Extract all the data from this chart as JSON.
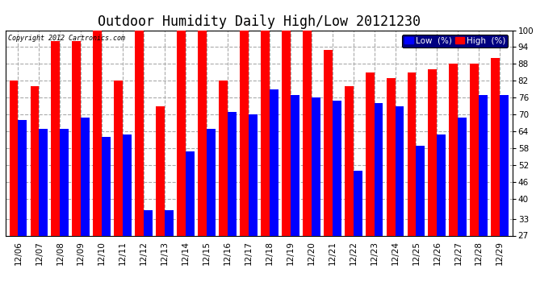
{
  "title": "Outdoor Humidity Daily High/Low 20121230",
  "copyright": "Copyright 2012 Cartronics.com",
  "dates": [
    "12/06",
    "12/07",
    "12/08",
    "12/09",
    "12/10",
    "12/11",
    "12/12",
    "12/13",
    "12/14",
    "12/15",
    "12/16",
    "12/17",
    "12/18",
    "12/19",
    "12/20",
    "12/21",
    "12/22",
    "12/23",
    "12/24",
    "12/25",
    "12/26",
    "12/27",
    "12/28",
    "12/29"
  ],
  "high": [
    82,
    80,
    96,
    96,
    100,
    82,
    100,
    73,
    100,
    100,
    82,
    100,
    100,
    100,
    100,
    93,
    80,
    85,
    83,
    85,
    86,
    88,
    88,
    90
  ],
  "low": [
    68,
    65,
    65,
    69,
    62,
    63,
    36,
    36,
    57,
    65,
    71,
    70,
    79,
    77,
    76,
    75,
    50,
    74,
    73,
    59,
    63,
    69,
    77,
    77
  ],
  "high_color": "#ff0000",
  "low_color": "#0000ff",
  "bg_color": "#ffffff",
  "grid_color": "#aaaaaa",
  "yticks": [
    27,
    33,
    40,
    46,
    52,
    58,
    64,
    70,
    76,
    82,
    88,
    94,
    100
  ],
  "ymin": 27,
  "ymax": 100,
  "bar_width": 0.42,
  "title_fontsize": 12,
  "tick_fontsize": 7.5,
  "legend_fontsize": 8
}
